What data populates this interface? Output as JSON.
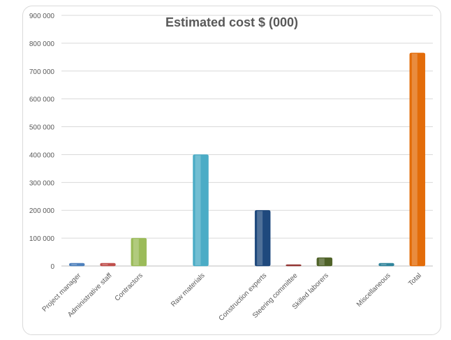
{
  "chart_data": {
    "type": "bar",
    "title": "Estimated cost $ (000)",
    "xlabel": "",
    "ylabel": "",
    "ylim": [
      0,
      900000
    ],
    "yticks": [
      0,
      100000,
      200000,
      300000,
      400000,
      500000,
      600000,
      700000,
      800000,
      900000
    ],
    "ytick_labels": [
      "0",
      "100 000",
      "200 000",
      "300 000",
      "400 000",
      "500 000",
      "600 000",
      "700 000",
      "800 000",
      "900 000"
    ],
    "grid": true,
    "categories": [
      "Project manager",
      "Administrative staff",
      "Contractors",
      "",
      "Raw materials",
      "",
      "Construction experts",
      "Steering committee",
      "Skilled laborers",
      "",
      "Miscellaneous",
      "Total"
    ],
    "values": [
      10000,
      10000,
      100000,
      0,
      400000,
      0,
      200000,
      5000,
      30000,
      0,
      10000,
      765000
    ],
    "colors": [
      "#4f81bd",
      "#c0504d",
      "#9bbb59",
      "#8064a2",
      "#4bacc6",
      "#f79646",
      "#1f497d",
      "#943634",
      "#4f6228",
      "#5f497a",
      "#31859c",
      "#e36c09"
    ]
  }
}
